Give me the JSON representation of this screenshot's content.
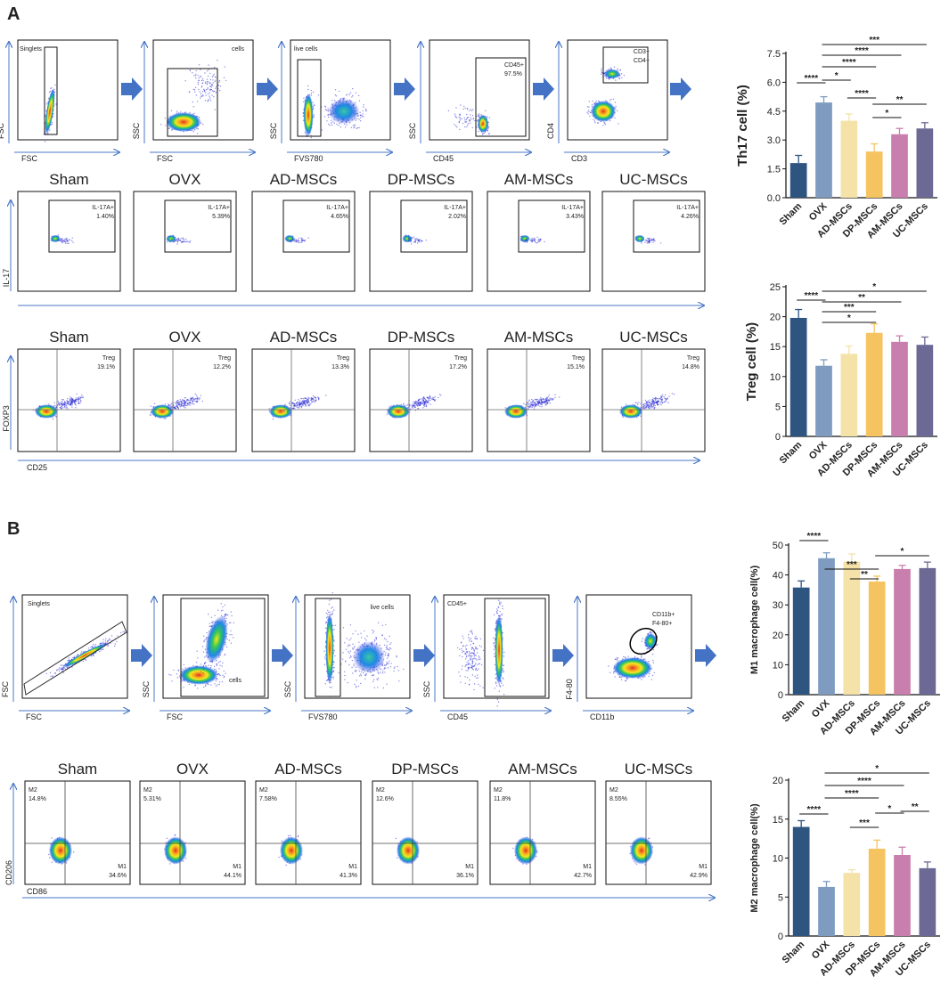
{
  "panels": {
    "A": {
      "label": "A",
      "gating": [
        {
          "ylabel": "FSC",
          "xlabel": "FSC",
          "gate": "Singlets"
        },
        {
          "ylabel": "SSC",
          "xlabel": "FSC",
          "gate": "cells"
        },
        {
          "ylabel": "SSC",
          "xlabel": "FVS780",
          "gate": "live cells"
        },
        {
          "ylabel": "SSC",
          "xlabel": "CD45",
          "gate": "CD45+",
          "gate_pct": "97.5%"
        },
        {
          "ylabel": "CD4",
          "xlabel": "CD3",
          "gate": "CD3+",
          "gate2": "CD4+"
        }
      ],
      "il17": {
        "ylabel": "IL-17",
        "gate_label": "IL-17A+",
        "groups": [
          "Sham",
          "OVX",
          "AD-MSCs",
          "DP-MSCs",
          "AM-MSCs",
          "UC-MSCs"
        ],
        "values": [
          "1.40%",
          "5.39%",
          "4.65%",
          "2.02%",
          "3.43%",
          "4.26%"
        ]
      },
      "treg": {
        "ylabel": "FOXP3",
        "xlabel": "CD25",
        "gate_label": "Treg",
        "groups": [
          "Sham",
          "OVX",
          "AD-MSCs",
          "DP-MSCs",
          "AM-MSCs",
          "UC-MSCs"
        ],
        "values": [
          "19.1%",
          "12.2%",
          "13.3%",
          "17.2%",
          "15.1%",
          "14.8%"
        ]
      }
    },
    "B": {
      "label": "B",
      "gating": [
        {
          "ylabel": "FSC",
          "xlabel": "FSC",
          "gate": "Singlets"
        },
        {
          "ylabel": "SSC",
          "xlabel": "FSC",
          "gate": "cells"
        },
        {
          "ylabel": "SSC",
          "xlabel": "FVS780",
          "gate": "live cells"
        },
        {
          "ylabel": "SSC",
          "xlabel": "CD45",
          "gate": "CD45+"
        },
        {
          "ylabel": "F4-80",
          "xlabel": "CD11b",
          "gate": "CD11b+",
          "gate2": "F4-80+"
        }
      ],
      "macro": {
        "ylabel": "CD206",
        "xlabel": "CD86",
        "m2_label": "M2",
        "m1_label": "M1",
        "groups": [
          "Sham",
          "OVX",
          "AD-MSCs",
          "DP-MSCs",
          "AM-MSCs",
          "UC-MSCs"
        ],
        "m2": [
          "14.8%",
          "5.31%",
          "7.58%",
          "12.6%",
          "11.8%",
          "8.55%"
        ],
        "m1": [
          "34.6%",
          "44.1%",
          "41.3%",
          "36.1%",
          "42.7%",
          "42.9%"
        ]
      }
    }
  },
  "colors": {
    "bars": [
      "#2e5580",
      "#7f9cc0",
      "#f5e2a8",
      "#f5c460",
      "#c97fad",
      "#6c6a95"
    ],
    "axis_arrow": "#4a78c8",
    "block_arrow": "#4472c4"
  },
  "chart_data": [
    {
      "type": "bar",
      "title": "",
      "ylabel": "Th17 cell (%)",
      "categories": [
        "Sham",
        "OVX",
        "AD-MSCs",
        "DP-MSCs",
        "AM-MSCs",
        "UC-MSCs"
      ],
      "values": [
        1.8,
        4.95,
        4.0,
        2.4,
        3.3,
        3.6
      ],
      "errors": [
        0.4,
        0.3,
        0.35,
        0.4,
        0.3,
        0.3
      ],
      "ylim": [
        0,
        7.5
      ],
      "yticks": [
        "0.0",
        "1.5",
        "3.0",
        "4.5",
        "6.0",
        "7.5"
      ],
      "significance": [
        {
          "from": 0,
          "to": 1,
          "label": "****"
        },
        {
          "from": 1,
          "to": 2,
          "label": "*"
        },
        {
          "from": 1,
          "to": 3,
          "label": "****"
        },
        {
          "from": 1,
          "to": 4,
          "label": "****"
        },
        {
          "from": 1,
          "to": 5,
          "label": "***"
        },
        {
          "from": 2,
          "to": 3,
          "label": "****"
        },
        {
          "from": 3,
          "to": 4,
          "label": "*"
        },
        {
          "from": 3,
          "to": 5,
          "label": "**"
        }
      ]
    },
    {
      "type": "bar",
      "title": "",
      "ylabel": "Treg cell (%)",
      "categories": [
        "Sham",
        "OVX",
        "AD-MSCs",
        "DP-MSCs",
        "AM-MSCs",
        "UC-MSCs"
      ],
      "values": [
        19.8,
        11.8,
        13.8,
        17.3,
        15.8,
        15.3
      ],
      "errors": [
        1.4,
        1.0,
        1.3,
        1.5,
        1.0,
        1.3
      ],
      "ylim": [
        0,
        25
      ],
      "yticks": [
        "0",
        "5",
        "10",
        "15",
        "20",
        "25"
      ],
      "significance": [
        {
          "from": 0,
          "to": 1,
          "label": "****"
        },
        {
          "from": 1,
          "to": 3,
          "label": "*"
        },
        {
          "from": 1,
          "to": 3,
          "label": "***"
        },
        {
          "from": 1,
          "to": 4,
          "label": "**"
        },
        {
          "from": 1,
          "to": 5,
          "label": "*"
        }
      ]
    },
    {
      "type": "bar",
      "title": "",
      "ylabel": "M1 macrophage cell(%)",
      "categories": [
        "Sham",
        "OVX",
        "AD-MSCs",
        "DP-MSCs",
        "AM-MSCs",
        "UC-MSCs"
      ],
      "values": [
        35.8,
        45.6,
        44.5,
        37.8,
        42.0,
        42.3
      ],
      "errors": [
        2.2,
        1.8,
        2.5,
        1.8,
        1.2,
        2.0
      ],
      "ylim": [
        0,
        50
      ],
      "yticks": [
        "0",
        "10",
        "20",
        "30",
        "40",
        "50"
      ],
      "significance": [
        {
          "from": 0,
          "to": 1,
          "label": "****"
        },
        {
          "from": 1,
          "to": 3,
          "label": "***"
        },
        {
          "from": 2,
          "to": 3,
          "label": "**"
        },
        {
          "from": 3,
          "to": 5,
          "label": "*"
        }
      ]
    },
    {
      "type": "bar",
      "title": "",
      "ylabel": "M2 macrophage cell(%)",
      "categories": [
        "Sham",
        "OVX",
        "AD-MSCs",
        "DP-MSCs",
        "AM-MSCs",
        "UC-MSCs"
      ],
      "values": [
        14.0,
        6.3,
        8.1,
        11.2,
        10.4,
        8.7
      ],
      "errors": [
        0.8,
        0.7,
        0.4,
        1.1,
        1.0,
        0.8
      ],
      "ylim": [
        0,
        20
      ],
      "yticks": [
        "0",
        "5",
        "10",
        "15",
        "20"
      ],
      "significance": [
        {
          "from": 0,
          "to": 1,
          "label": "****"
        },
        {
          "from": 1,
          "to": 5,
          "label": "*"
        },
        {
          "from": 1,
          "to": 4,
          "label": "****"
        },
        {
          "from": 1,
          "to": 3,
          "label": "****"
        },
        {
          "from": 3,
          "to": 4,
          "label": "*"
        },
        {
          "from": 2,
          "to": 3,
          "label": "***"
        },
        {
          "from": 4,
          "to": 5,
          "label": "**"
        }
      ]
    }
  ]
}
